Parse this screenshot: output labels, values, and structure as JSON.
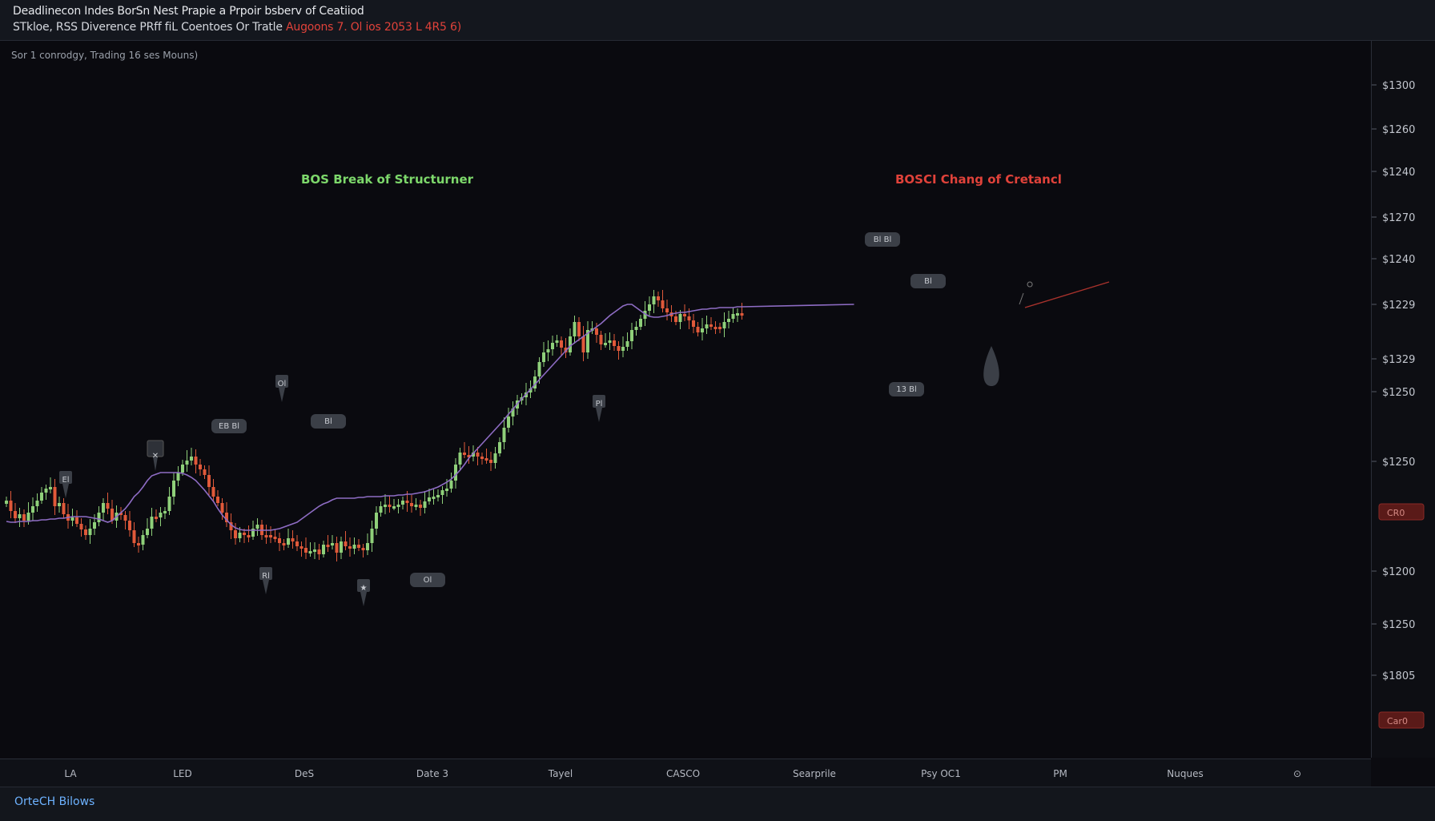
{
  "header": {
    "title": "Deadlinecon Indes BorSn Nest Prapie a Prpoir bsberv of Ceatiiod",
    "subtitle_main": "STkloe, RSS Diverence PRff fiL Coentoes Or Tratle",
    "subtitle_red": "Augoons 7. Ol ios 2053 L 4R5 6)"
  },
  "status_text": "Sor 1 conrodgy, Trading 16 ses Mouns)",
  "annotations": {
    "bos": "BOS Break of Structurner",
    "choch": "BOSCI Chang of Cretancl"
  },
  "colors": {
    "background": "#0a0a0f",
    "bull": "#8fd07a",
    "bear": "#e0593a",
    "ma": "#8e6cc4",
    "bos": "#7dd86b",
    "choch": "#e0423a"
  },
  "footer": {
    "link": "OrteCH Bilows"
  },
  "markers": [
    {
      "kind": "pin",
      "label": "El"
    },
    {
      "kind": "x",
      "label": "✕"
    },
    {
      "kind": "tag",
      "label": "EB Bl"
    },
    {
      "kind": "pin",
      "label": "Ol"
    },
    {
      "kind": "tag",
      "label": "Bl"
    },
    {
      "kind": "pin",
      "label": "Rl"
    },
    {
      "kind": "pin",
      "label": "★"
    },
    {
      "kind": "tag",
      "label": "Ol"
    },
    {
      "kind": "pin",
      "label": "Pl"
    },
    {
      "kind": "tag",
      "label": "Bl Bl"
    },
    {
      "kind": "tag",
      "label": "Bl"
    },
    {
      "kind": "tag",
      "label": "13 Bl"
    },
    {
      "kind": "drop",
      "label": ""
    }
  ],
  "chart_data": {
    "type": "candlestick",
    "price_axis_labels": [
      "$1300",
      "$1260",
      "$1240",
      "$1270",
      "$1240",
      "$1229",
      "$1329",
      "$1250",
      "$1250",
      "$1200",
      "$1250",
      "$1805"
    ],
    "price_tags": [
      "CR0",
      "Car0"
    ],
    "time_labels": [
      "LA",
      "LED",
      "DeS",
      "Date 3",
      "Tayel",
      "CASCO",
      "Searprile",
      "Psy OC1",
      "PM",
      "Nuques",
      "⊙"
    ],
    "series": [
      {
        "name": "Price",
        "type": "candlestick"
      },
      {
        "name": "Moving Average",
        "type": "line"
      }
    ],
    "price_path": [
      625,
      638,
      647,
      642,
      650,
      640,
      632,
      625,
      615,
      610,
      608,
      632,
      628,
      642,
      650,
      646,
      654,
      661,
      668,
      660,
      652,
      640,
      628,
      635,
      650,
      640,
      643,
      650,
      662,
      678,
      680,
      668,
      660,
      645,
      646,
      640,
      638,
      620,
      600,
      590,
      580,
      575,
      570,
      580,
      586,
      593,
      608,
      620,
      628,
      640,
      652,
      662,
      672,
      665,
      668,
      670,
      660,
      655,
      668,
      668,
      670,
      672,
      678,
      680,
      672,
      676,
      682,
      684,
      690,
      688,
      686,
      692,
      680,
      680,
      678,
      690,
      676,
      682,
      685,
      680,
      684,
      687,
      678,
      660,
      640,
      632,
      630,
      633,
      632,
      630,
      625,
      628,
      632,
      630,
      634,
      626,
      621,
      620,
      618,
      612,
      610,
      600,
      580,
      565,
      568,
      570,
      565,
      570,
      572,
      574,
      578,
      566,
      552,
      534,
      520,
      510,
      500,
      496,
      490,
      485,
      470,
      452,
      440,
      436,
      428,
      425,
      434,
      440,
      420,
      402,
      420,
      440,
      412,
      410,
      418,
      430,
      428,
      425,
      432,
      438,
      433,
      426,
      412,
      408,
      398,
      388,
      380,
      370,
      375,
      385,
      390,
      395,
      402,
      392,
      395,
      400,
      408,
      415,
      410,
      405,
      408,
      408,
      410,
      402,
      398,
      392,
      391,
      392
    ],
    "ma_path": [
      651,
      652,
      652,
      651,
      651,
      651,
      650,
      650,
      649,
      649,
      648,
      648,
      647,
      647,
      646,
      645,
      645,
      645,
      645,
      646,
      647,
      648,
      650,
      652,
      650,
      645,
      640,
      635,
      628,
      620,
      615,
      608,
      600,
      594,
      592,
      590,
      590,
      590,
      590,
      590,
      591,
      593,
      596,
      600,
      606,
      612,
      619,
      626,
      635,
      643,
      649,
      655,
      659,
      661,
      662,
      662,
      662,
      662,
      662,
      662,
      662,
      661,
      660,
      658,
      656,
      654,
      652,
      648,
      644,
      640,
      636,
      632,
      629,
      627,
      624,
      622,
      622,
      622,
      622,
      622,
      621,
      621,
      620,
      620,
      620,
      620,
      619,
      619,
      619,
      618,
      618,
      617,
      617,
      616,
      615,
      614,
      612,
      610,
      608,
      605,
      602,
      598,
      593,
      587,
      580,
      572,
      566,
      560,
      554,
      548,
      542,
      536,
      530,
      524,
      517,
      511,
      504,
      498,
      492,
      486,
      480,
      474,
      468,
      462,
      456,
      450,
      444,
      438,
      432,
      428,
      424,
      420,
      416,
      412,
      408,
      404,
      399,
      394,
      390,
      386,
      382,
      380,
      380,
      384,
      388,
      392,
      395,
      396,
      396,
      395,
      394,
      392,
      391,
      390,
      390,
      389,
      388,
      387,
      386,
      386,
      385,
      385,
      384,
      384,
      384,
      384,
      383,
      383
    ],
    "x_start": 8,
    "x_step": 5.5,
    "ylim_px": [
      0,
      1024
    ]
  }
}
